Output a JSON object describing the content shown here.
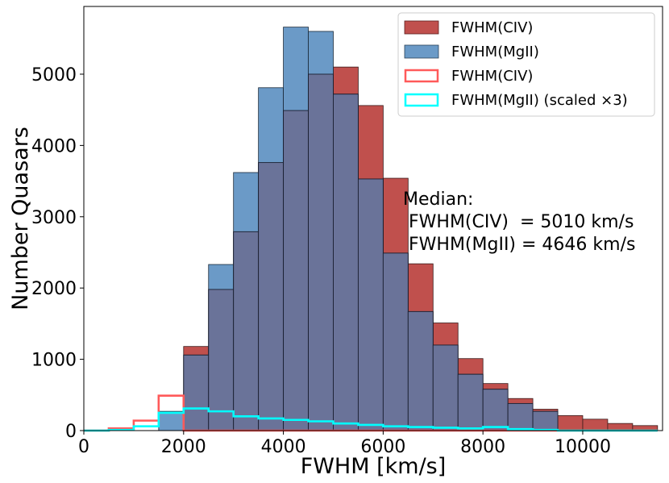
{
  "chart_data": {
    "type": "bar",
    "title": "",
    "xlabel": "FWHM [km/s]",
    "ylabel": "Number Quasars",
    "xlim": [
      0,
      11600
    ],
    "ylim": [
      0,
      5950
    ],
    "xticks": [
      0,
      2000,
      4000,
      6000,
      8000,
      10000
    ],
    "yticks": [
      0,
      1000,
      2000,
      3000,
      4000,
      5000
    ],
    "grid": false,
    "legend_position": "top-right",
    "bin_edges": [
      0,
      500,
      1000,
      1500,
      2000,
      2500,
      3000,
      3500,
      4000,
      4500,
      5000,
      5500,
      6000,
      6500,
      7000,
      7500,
      8000,
      8500,
      9000,
      9500,
      10000,
      10500,
      11000,
      11500
    ],
    "series": [
      {
        "name": "FWHM(CIV)",
        "style": "filled",
        "color": "#c0504d",
        "values": [
          0,
          0,
          0,
          0,
          1180,
          1980,
          2790,
          3760,
          4490,
          5000,
          5100,
          4560,
          3540,
          2340,
          1510,
          1010,
          660,
          450,
          300,
          210,
          160,
          100,
          70
        ]
      },
      {
        "name": "FWHM(MgII)",
        "style": "filled",
        "color": "#6b9ac7",
        "values": [
          0,
          0,
          0,
          270,
          1060,
          2330,
          3620,
          4810,
          5660,
          5600,
          4720,
          3530,
          2490,
          1670,
          1200,
          790,
          580,
          380,
          270,
          0,
          0,
          0,
          0
        ]
      },
      {
        "name": "FWHM(CIV)",
        "style": "step",
        "color": "#ff5a5a",
        "values": [
          0,
          30,
          140,
          490,
          0,
          0,
          0,
          0,
          0,
          0,
          0,
          0,
          0,
          0,
          0,
          0,
          0,
          0,
          0,
          0,
          0,
          0,
          0
        ]
      },
      {
        "name": "FWHM(MgII) (scaled ×3)",
        "style": "step",
        "color": "#00ffff",
        "values": [
          0,
          10,
          60,
          250,
          310,
          270,
          200,
          170,
          150,
          130,
          100,
          80,
          60,
          50,
          40,
          30,
          50,
          20,
          10,
          0,
          0,
          0,
          0
        ]
      }
    ],
    "annotation": {
      "line1": "Median:",
      "line2": " FWHM(CIV)  = 5010 km/s",
      "line3": " FWHM(MgII) = 4646 km/s"
    }
  }
}
